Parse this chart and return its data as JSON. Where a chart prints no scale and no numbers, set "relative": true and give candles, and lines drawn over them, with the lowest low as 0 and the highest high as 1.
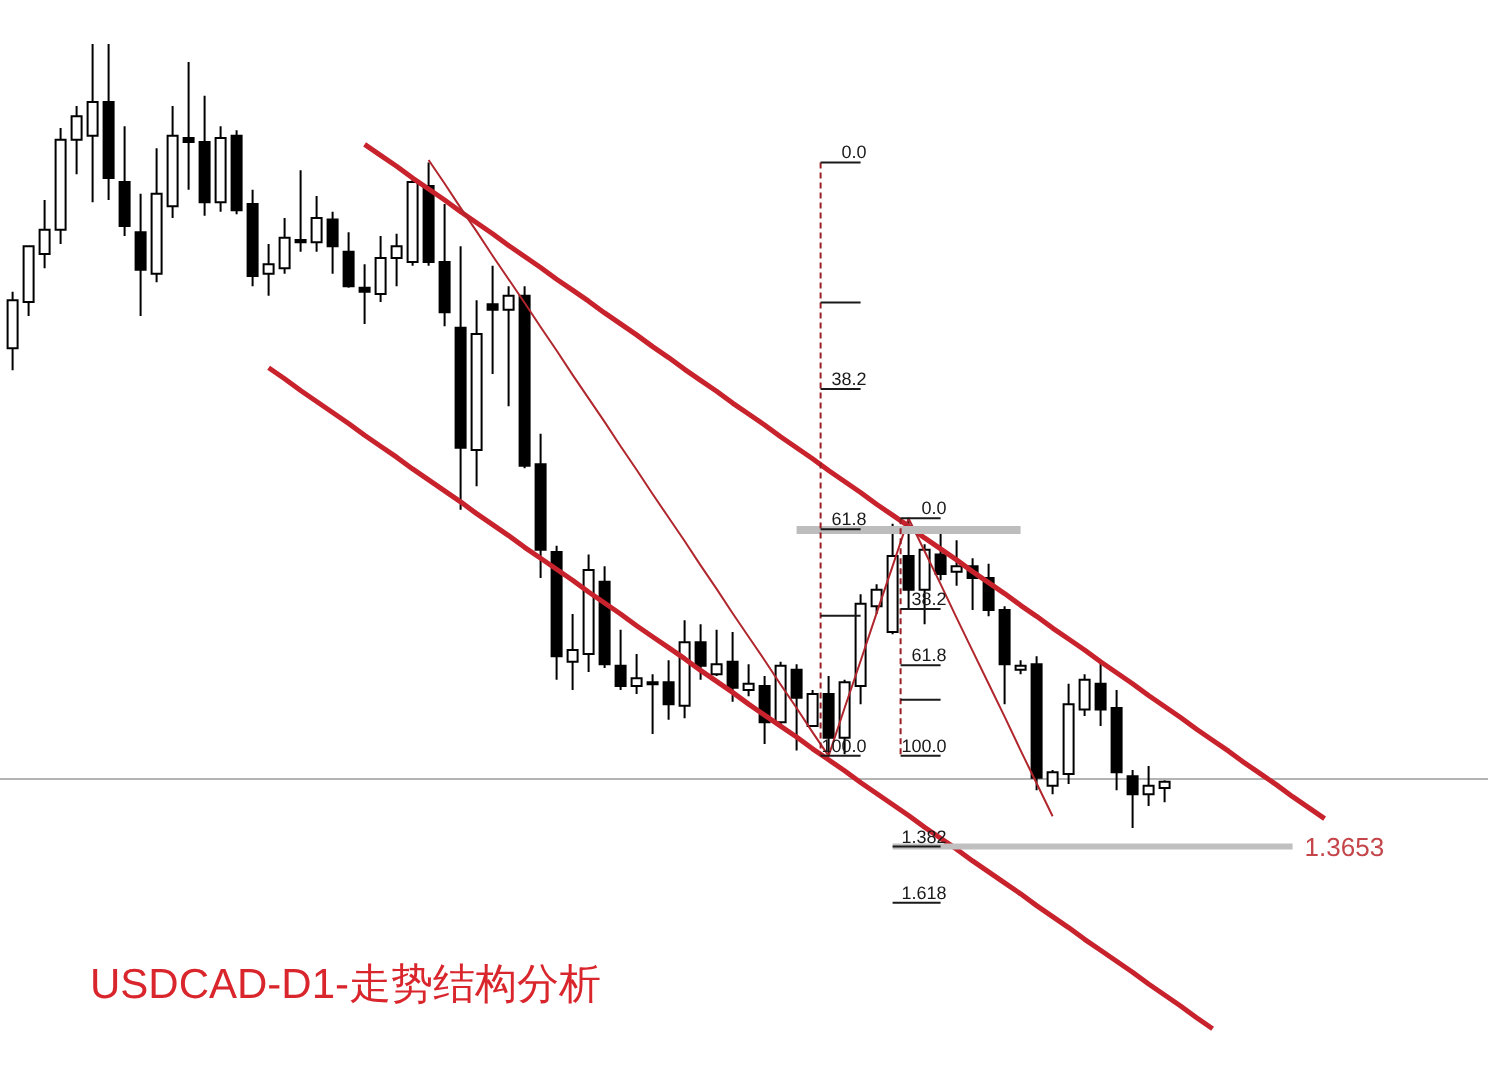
{
  "chart_data": {
    "type": "candlestick",
    "title": "USDCAD-D1-走势结构分析",
    "relative": true,
    "categories": [
      null,
      null,
      null,
      null,
      null,
      null,
      null,
      null,
      null,
      null,
      null,
      null,
      null,
      null,
      null,
      null,
      null,
      null,
      null,
      null,
      null,
      null,
      null,
      null,
      null,
      null,
      null,
      null,
      null,
      null,
      null,
      null,
      null,
      null,
      null,
      null,
      null,
      null,
      null,
      null,
      null,
      null,
      null,
      null,
      null,
      null,
      null,
      null,
      null,
      null,
      null,
      null,
      null,
      null,
      null,
      null,
      null,
      null,
      null,
      null,
      null,
      null,
      null,
      null,
      null,
      null,
      null,
      null,
      null,
      null,
      null,
      null,
      null,
      null,
      null,
      null,
      null,
      null,
      null,
      null,
      null,
      null,
      null
    ],
    "ohlc": [
      [
        0.612,
        0.684,
        0.584,
        0.673
      ],
      [
        0.671,
        0.742,
        0.653,
        0.742
      ],
      [
        0.732,
        0.801,
        0.714,
        0.763
      ],
      [
        0.763,
        0.893,
        0.745,
        0.878
      ],
      [
        0.878,
        0.921,
        0.834,
        0.908
      ],
      [
        0.883,
        1.0,
        0.798,
        0.926
      ],
      [
        0.926,
        1.0,
        0.801,
        0.829
      ],
      [
        0.824,
        0.895,
        0.755,
        0.768
      ],
      [
        0.76,
        0.809,
        0.653,
        0.712
      ],
      [
        0.707,
        0.867,
        0.696,
        0.809
      ],
      [
        0.793,
        0.921,
        0.778,
        0.883
      ],
      [
        0.88,
        0.977,
        0.814,
        0.875
      ],
      [
        0.875,
        0.934,
        0.781,
        0.798
      ],
      [
        0.798,
        0.895,
        0.786,
        0.88
      ],
      [
        0.883,
        0.89,
        0.783,
        0.788
      ],
      [
        0.796,
        0.814,
        0.691,
        0.704
      ],
      [
        0.707,
        0.745,
        0.679,
        0.719
      ],
      [
        0.714,
        0.778,
        0.707,
        0.753
      ],
      [
        0.75,
        0.839,
        0.735,
        0.747
      ],
      [
        0.747,
        0.806,
        0.735,
        0.778
      ],
      [
        0.776,
        0.786,
        0.707,
        0.742
      ],
      [
        0.735,
        0.76,
        0.689,
        0.691
      ],
      [
        0.689,
        0.719,
        0.643,
        0.684
      ],
      [
        0.681,
        0.755,
        0.671,
        0.727
      ],
      [
        0.727,
        0.758,
        0.691,
        0.742
      ],
      [
        0.722,
        0.827,
        0.717,
        0.824
      ],
      [
        0.819,
        0.849,
        0.717,
        0.722
      ],
      [
        0.722,
        0.796,
        0.64,
        0.658
      ],
      [
        0.638,
        0.742,
        0.406,
        0.485
      ],
      [
        0.482,
        0.673,
        0.436,
        0.63
      ],
      [
        0.668,
        0.717,
        0.579,
        0.661
      ],
      [
        0.661,
        0.691,
        0.538,
        0.679
      ],
      [
        0.679,
        0.691,
        0.459,
        0.462
      ],
      [
        0.464,
        0.503,
        0.319,
        0.355
      ],
      [
        0.352,
        0.36,
        0.189,
        0.219
      ],
      [
        0.212,
        0.273,
        0.176,
        0.227
      ],
      [
        0.222,
        0.349,
        0.199,
        0.329
      ],
      [
        0.314,
        0.334,
        0.204,
        0.209
      ],
      [
        0.207,
        0.253,
        0.176,
        0.181
      ],
      [
        0.181,
        0.222,
        0.171,
        0.191
      ],
      [
        0.186,
        0.196,
        0.12,
        0.184
      ],
      [
        0.186,
        0.214,
        0.138,
        0.158
      ],
      [
        0.156,
        0.265,
        0.14,
        0.237
      ],
      [
        0.237,
        0.26,
        0.189,
        0.207
      ],
      [
        0.196,
        0.253,
        0.194,
        0.209
      ],
      [
        0.212,
        0.25,
        0.161,
        0.179
      ],
      [
        0.176,
        0.209,
        0.168,
        0.184
      ],
      [
        0.181,
        0.194,
        0.107,
        0.135
      ],
      [
        0.135,
        0.212,
        0.13,
        0.207
      ],
      [
        0.202,
        0.209,
        0.099,
        0.166
      ],
      [
        0.13,
        0.176,
        0.13,
        0.171
      ],
      [
        0.171,
        0.194,
        0.092,
        0.115
      ],
      [
        0.115,
        0.189,
        0.094,
        0.186
      ],
      [
        0.181,
        0.298,
        0.158,
        0.286
      ],
      [
        0.283,
        0.311,
        0.273,
        0.304
      ],
      [
        0.25,
        0.388,
        0.247,
        0.347
      ],
      [
        0.347,
        0.395,
        0.278,
        0.304
      ],
      [
        0.304,
        0.362,
        0.26,
        0.355
      ],
      [
        0.349,
        0.38,
        0.316,
        0.324
      ],
      [
        0.327,
        0.367,
        0.309,
        0.334
      ],
      [
        0.334,
        0.344,
        0.278,
        0.319
      ],
      [
        0.319,
        0.337,
        0.27,
        0.278
      ],
      [
        0.278,
        0.283,
        0.158,
        0.209
      ],
      [
        0.202,
        0.214,
        0.196,
        0.207
      ],
      [
        0.209,
        0.219,
        0.048,
        0.064
      ],
      [
        0.054,
        0.074,
        0.043,
        0.071
      ],
      [
        0.069,
        0.184,
        0.056,
        0.158
      ],
      [
        0.151,
        0.196,
        0.143,
        0.189
      ],
      [
        0.184,
        0.214,
        0.13,
        0.151
      ],
      [
        0.153,
        0.176,
        0.048,
        0.071
      ],
      [
        0.066,
        0.074,
        0.0,
        0.043
      ],
      [
        0.043,
        0.079,
        0.028,
        0.054
      ],
      [
        0.051,
        0.061,
        0.033,
        0.059
      ],
      null,
      null,
      null,
      null,
      null,
      null,
      null,
      null,
      null,
      null
    ],
    "series": [
      {
        "type": "line",
        "color": "#c8232c",
        "values": [
          null,
          null,
          null,
          null,
          null,
          null,
          null,
          null,
          null,
          null,
          null,
          null,
          null,
          null,
          null,
          null,
          null,
          null,
          null,
          null,
          null,
          null,
          0.872,
          0.858,
          0.844,
          0.829,
          0.815,
          0.801,
          0.786,
          0.772,
          0.758,
          0.743,
          0.729,
          0.715,
          0.7,
          0.686,
          0.672,
          0.657,
          0.643,
          0.629,
          0.614,
          0.6,
          0.585,
          0.571,
          0.557,
          0.542,
          0.528,
          0.514,
          0.499,
          0.485,
          0.471,
          0.456,
          0.442,
          0.428,
          0.413,
          0.399,
          0.385,
          0.37,
          0.356,
          0.342,
          0.327,
          0.313,
          0.299,
          0.284,
          0.27,
          0.255,
          0.241,
          0.227,
          0.212,
          0.198,
          0.184,
          0.169,
          0.155,
          0.141,
          0.126,
          0.112,
          0.098,
          0.083,
          0.069,
          0.055,
          0.04,
          0.026,
          0.012
        ]
      },
      {
        "type": "line",
        "color": "#c8232c",
        "values": [
          null,
          null,
          null,
          null,
          null,
          null,
          null,
          null,
          null,
          null,
          null,
          null,
          null,
          null,
          null,
          null,
          0.587,
          0.573,
          0.558,
          0.544,
          0.53,
          0.516,
          0.501,
          0.487,
          0.473,
          0.458,
          0.444,
          0.43,
          0.416,
          0.401,
          0.387,
          0.373,
          0.358,
          0.344,
          0.33,
          0.316,
          0.301,
          0.287,
          0.273,
          0.258,
          0.244,
          0.23,
          0.216,
          0.201,
          0.187,
          0.173,
          0.158,
          0.144,
          0.13,
          0.116,
          0.101,
          0.087,
          0.073,
          0.058,
          0.044,
          0.03,
          0.016,
          0.001,
          -0.013,
          -0.027,
          -0.042,
          -0.056,
          -0.07,
          -0.084,
          -0.099,
          -0.113,
          -0.127,
          -0.142,
          -0.156,
          -0.17,
          -0.184,
          -0.199,
          -0.213,
          -0.227,
          -0.242,
          -0.256,
          null,
          null,
          null,
          null,
          null,
          null,
          null
        ]
      },
      {
        "type": "line",
        "color": "#b0262c",
        "values": [
          null,
          null,
          null,
          null,
          null,
          null,
          null,
          null,
          null,
          null,
          null,
          null,
          null,
          null,
          null,
          null,
          null,
          null,
          null,
          null,
          null,
          null,
          null,
          null,
          null,
          null,
          0.852,
          0.822,
          0.791,
          0.761,
          0.73,
          0.7,
          0.67,
          0.639,
          0.609,
          0.578,
          0.548,
          0.518,
          0.487,
          0.457,
          0.426,
          0.396,
          0.366,
          0.335,
          0.305,
          0.274,
          0.244,
          0.214,
          0.183,
          0.153,
          0.122,
          0.092,
          0.153,
          0.213,
          0.274,
          0.334,
          0.395,
          0.353,
          0.311,
          0.268,
          0.226,
          0.184,
          0.142,
          0.099,
          0.057,
          0.015,
          null,
          null,
          null,
          null,
          null,
          null,
          null,
          null,
          null,
          null,
          null,
          null,
          null,
          null,
          null,
          null,
          null
        ]
      },
      {
        "type": "line",
        "color": "#bdbdbd",
        "values": [
          null,
          null,
          null,
          null,
          null,
          null,
          null,
          null,
          null,
          null,
          null,
          null,
          null,
          null,
          null,
          null,
          null,
          null,
          null,
          null,
          null,
          null,
          null,
          null,
          null,
          null,
          null,
          null,
          null,
          null,
          null,
          null,
          null,
          null,
          null,
          null,
          null,
          null,
          null,
          null,
          null,
          null,
          null,
          null,
          null,
          null,
          null,
          null,
          null,
          0.38,
          0.38,
          0.38,
          0.38,
          0.38,
          0.38,
          0.38,
          0.38,
          0.38,
          0.38,
          0.38,
          0.38,
          0.38,
          0.38,
          0.38,
          null,
          null,
          null,
          null,
          null,
          null,
          null,
          null,
          null,
          null,
          null,
          null,
          null,
          null,
          null,
          null,
          null,
          null,
          null
        ]
      }
    ],
    "annotations": [
      "0.0",
      "38.2",
      "61.8",
      "100.0",
      "0.0",
      "38.2",
      "61.8",
      "100.0",
      "1.382",
      "1.618",
      "1.3653"
    ],
    "ref_lines": [
      {
        "axis": "y",
        "value": 0.064,
        "color": "#b4b4b4"
      }
    ]
  }
}
